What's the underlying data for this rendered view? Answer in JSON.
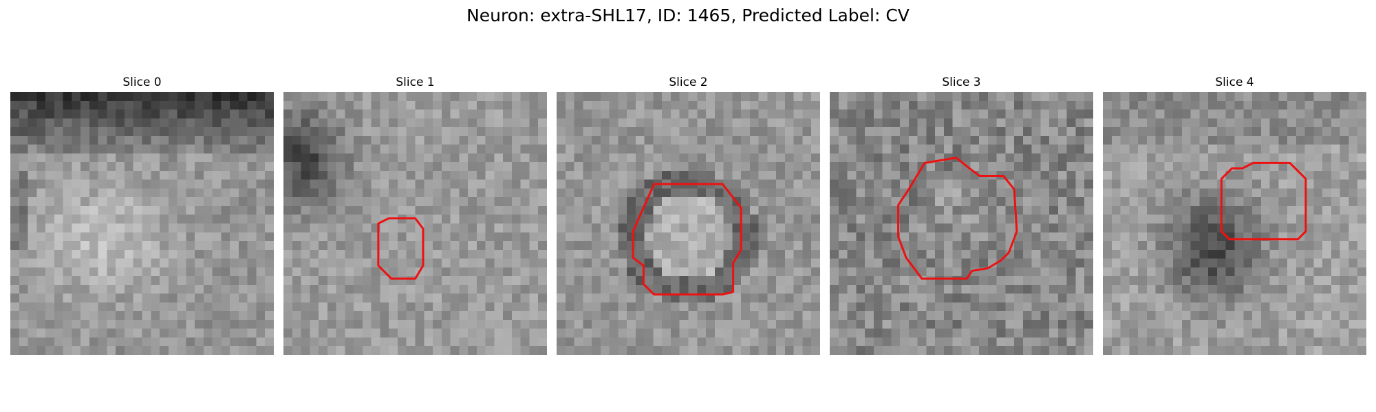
{
  "figure": {
    "title": "Neuron: extra-SHL17, ID: 1465, Predicted Label: CV"
  },
  "contour_color": "#ee1111",
  "slices": [
    {
      "label": "Slice 0",
      "pattern": "upper-dark",
      "seed": 11,
      "contour": null
    },
    {
      "label": "Slice 1",
      "pattern": "left-dark",
      "seed": 23,
      "contour": [
        [
          0.36,
          0.5
        ],
        [
          0.4,
          0.48
        ],
        [
          0.5,
          0.48
        ],
        [
          0.53,
          0.52
        ],
        [
          0.53,
          0.66
        ],
        [
          0.5,
          0.71
        ],
        [
          0.41,
          0.71
        ],
        [
          0.36,
          0.66
        ]
      ]
    },
    {
      "label": "Slice 2",
      "pattern": "ring",
      "seed": 37,
      "contour": [
        [
          0.33,
          0.44
        ],
        [
          0.37,
          0.35
        ],
        [
          0.63,
          0.35
        ],
        [
          0.7,
          0.44
        ],
        [
          0.7,
          0.6
        ],
        [
          0.67,
          0.65
        ],
        [
          0.67,
          0.76
        ],
        [
          0.63,
          0.77
        ],
        [
          0.37,
          0.77
        ],
        [
          0.33,
          0.73
        ],
        [
          0.33,
          0.66
        ],
        [
          0.29,
          0.63
        ],
        [
          0.29,
          0.53
        ]
      ]
    },
    {
      "label": "Slice 3",
      "pattern": "noisy",
      "seed": 51,
      "contour": [
        [
          0.3,
          0.37
        ],
        [
          0.36,
          0.27
        ],
        [
          0.48,
          0.25
        ],
        [
          0.53,
          0.29
        ],
        [
          0.57,
          0.32
        ],
        [
          0.66,
          0.32
        ],
        [
          0.7,
          0.37
        ],
        [
          0.71,
          0.53
        ],
        [
          0.68,
          0.61
        ],
        [
          0.65,
          0.64
        ],
        [
          0.6,
          0.67
        ],
        [
          0.54,
          0.68
        ],
        [
          0.52,
          0.71
        ],
        [
          0.35,
          0.71
        ],
        [
          0.29,
          0.63
        ],
        [
          0.26,
          0.55
        ],
        [
          0.26,
          0.43
        ]
      ]
    },
    {
      "label": "Slice 4",
      "pattern": "center-dark",
      "seed": 67,
      "contour": [
        [
          0.45,
          0.33
        ],
        [
          0.49,
          0.29
        ],
        [
          0.53,
          0.29
        ],
        [
          0.57,
          0.27
        ],
        [
          0.71,
          0.27
        ],
        [
          0.77,
          0.33
        ],
        [
          0.77,
          0.53
        ],
        [
          0.74,
          0.56
        ],
        [
          0.48,
          0.56
        ],
        [
          0.45,
          0.53
        ]
      ]
    }
  ]
}
